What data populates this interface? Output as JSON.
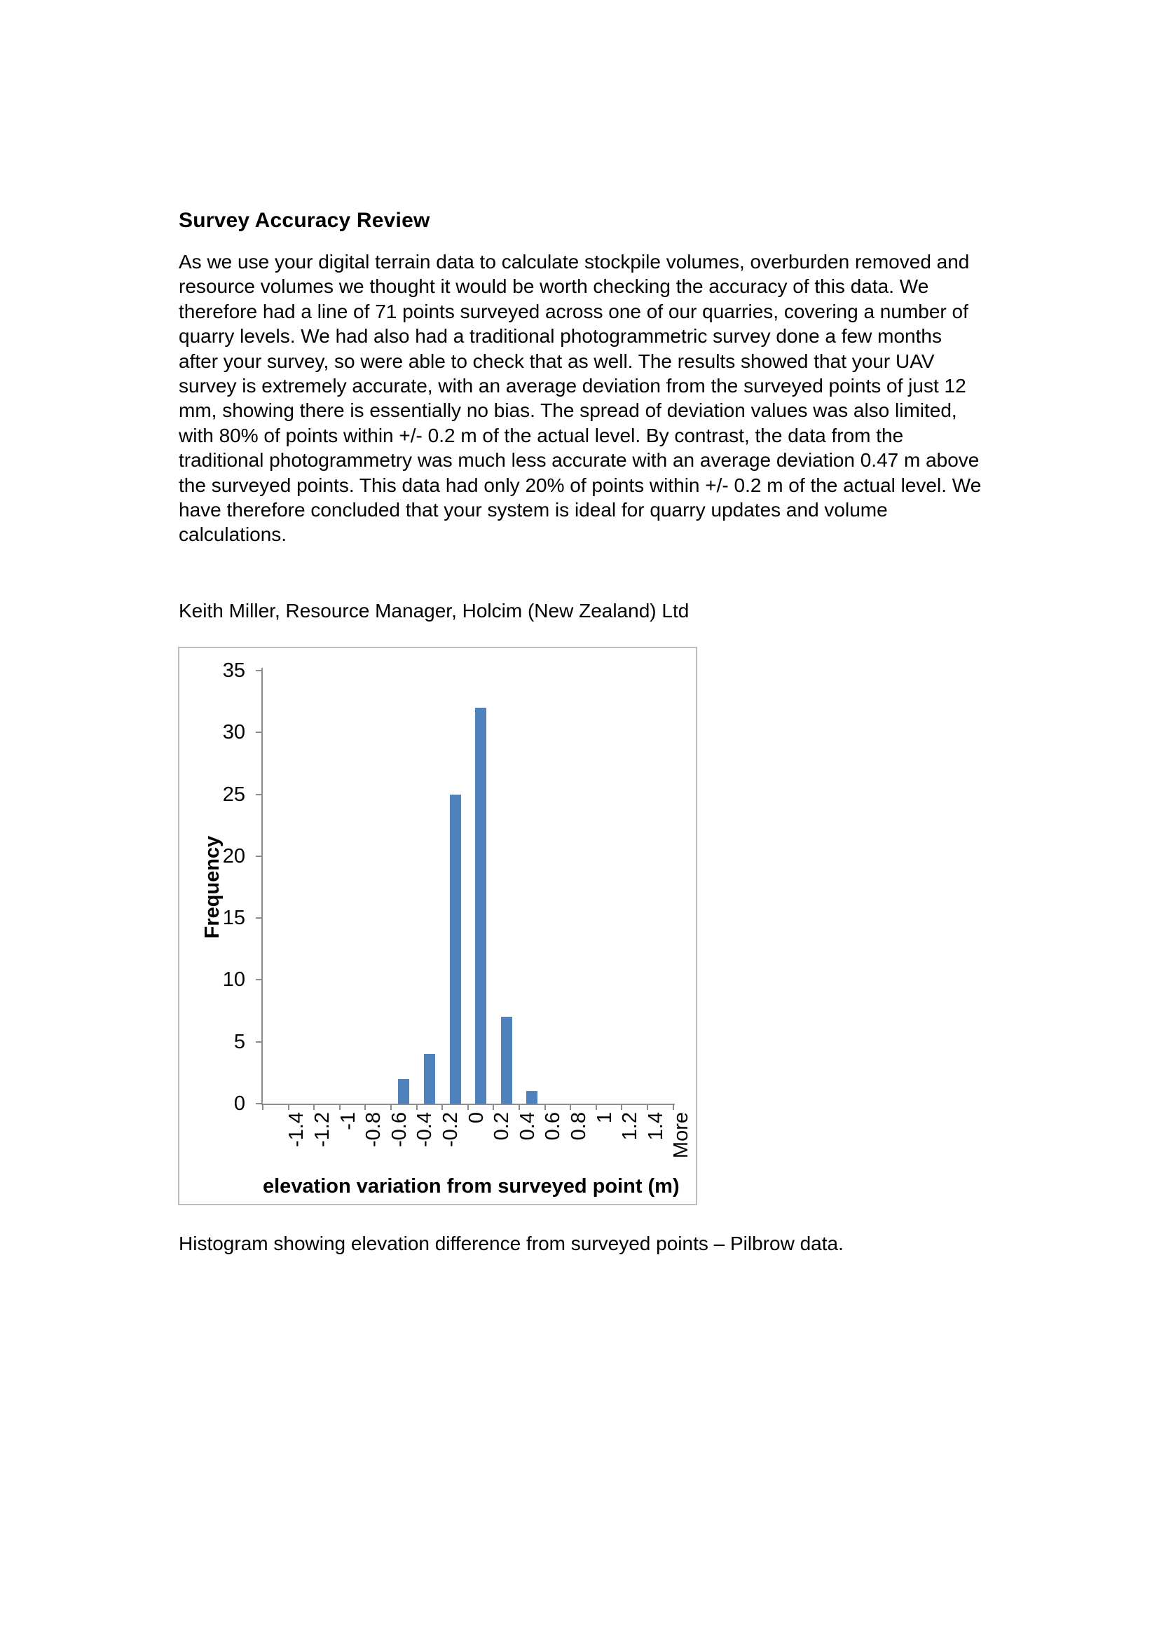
{
  "document": {
    "title": "Survey Accuracy Review",
    "paragraph_lines": [
      "As we use your digital terrain data to calculate stockpile volumes, overburden removed and",
      "resource volumes we thought it would be worth checking the accuracy of this data. We",
      "therefore had a line of 71 points surveyed across one of our quarries, covering a number of",
      "quarry levels. We had also had a traditional photogrammetric survey done a few months",
      "after your survey, so were able to check that as well. The results showed that your UAV",
      "survey is extremely accurate, with an average deviation from the surveyed points of just 12",
      "mm, showing there is essentially no bias. The spread of deviation values was also limited,",
      "with 80% of points within +/- 0.2 m of the actual level. By contrast, the data from the",
      "traditional photogrammetry was much less accurate with an average deviation 0.47 m above",
      "the surveyed points. This data had only 20% of points within +/- 0.2 m of the actual level. We",
      "have therefore concluded that your system is ideal for quarry updates and volume",
      "calculations."
    ],
    "byline": "Keith Miller, Resource Manager, Holcim (New Zealand) Ltd",
    "figure_caption": "Histogram showing elevation difference from surveyed points – Pilbrow data."
  },
  "chart_data": {
    "type": "bar",
    "title": "",
    "categories": [
      "-1.4",
      "-1.2",
      "-1",
      "-0.8",
      "-0.6",
      "-0.4",
      "-0.2",
      "0",
      "0.2",
      "0.4",
      "0.6",
      "0.8",
      "1",
      "1.2",
      "1.4",
      "More"
    ],
    "values": [
      0,
      0,
      0,
      0,
      0,
      2,
      4,
      25,
      32,
      7,
      1,
      0,
      0,
      0,
      0,
      0
    ],
    "xlabel": "elevation variation from surveyed point (m)",
    "ylabel": "Frequency",
    "ylim": [
      0,
      35
    ],
    "yticks": [
      0,
      5,
      10,
      15,
      20,
      25,
      30,
      35
    ],
    "grid": false,
    "legend": "none",
    "bar_color": "#4F81BD",
    "axis_color": "#8c8c8c",
    "box_border_color": "#bdbdbd",
    "label_color": "#000000"
  }
}
